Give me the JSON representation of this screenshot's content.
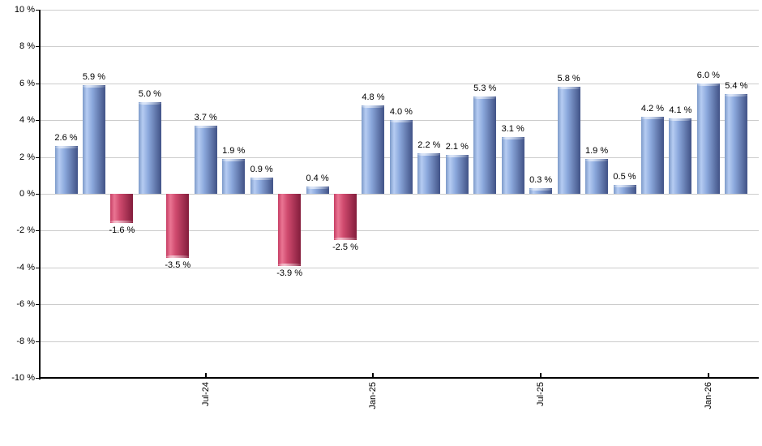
{
  "chart_data": {
    "type": "bar",
    "title": "",
    "values": [
      2.6,
      5.9,
      -1.6,
      5.0,
      -3.5,
      3.7,
      1.9,
      0.9,
      -3.9,
      0.4,
      -2.5,
      4.8,
      4.0,
      2.2,
      2.1,
      5.3,
      3.1,
      0.3,
      5.8,
      1.9,
      0.5,
      4.2,
      4.1,
      6.0,
      5.4
    ],
    "value_labels": [
      "2.6 %",
      "5.9 %",
      "-1.6 %",
      "5.0 %",
      "-3.5 %",
      "3.7 %",
      "1.9 %",
      "0.9 %",
      "-3.9 %",
      "0.4 %",
      "-2.5 %",
      "4.8 %",
      "4.0 %",
      "2.2 %",
      "2.1 %",
      "5.3 %",
      "3.1 %",
      "0.3 %",
      "5.8 %",
      "1.9 %",
      "0.5 %",
      "4.2 %",
      "4.1 %",
      "6.0 %",
      "5.4 %"
    ],
    "x_ticks": [
      {
        "index": 5,
        "label": "Jul-24"
      },
      {
        "index": 11,
        "label": "Jan-25"
      },
      {
        "index": 17,
        "label": "Jul-25"
      },
      {
        "index": 23,
        "label": "Jan-26"
      }
    ],
    "y_ticks": [
      {
        "value": 10,
        "label": "10 %"
      },
      {
        "value": 8,
        "label": "8 %"
      },
      {
        "value": 6,
        "label": "6 %"
      },
      {
        "value": 4,
        "label": "4 %"
      },
      {
        "value": 2,
        "label": "2 %"
      },
      {
        "value": 0,
        "label": "0 %"
      },
      {
        "value": -2,
        "label": "-2 %"
      },
      {
        "value": -4,
        "label": "-4 %"
      },
      {
        "value": -6,
        "label": "-6 %"
      },
      {
        "value": -8,
        "label": "-8 %"
      },
      {
        "value": -10,
        "label": "-10 %"
      }
    ],
    "ylim": [
      -10,
      10
    ],
    "grid": true,
    "legend_position": "none",
    "colors": {
      "background": "#ffffff",
      "gridline": "#cccccc",
      "axis": "#000000",
      "text": "#000000",
      "positive_bar": {
        "edge_left": "#7d9ac9",
        "highlight": "#b6ccf2",
        "mid": "#8ca9dd",
        "edge_right": "#46588c"
      },
      "negative_bar": {
        "edge_left": "#c63e64",
        "highlight": "#ea7593",
        "mid": "#cf4a6e",
        "edge_right": "#88203f"
      }
    }
  }
}
